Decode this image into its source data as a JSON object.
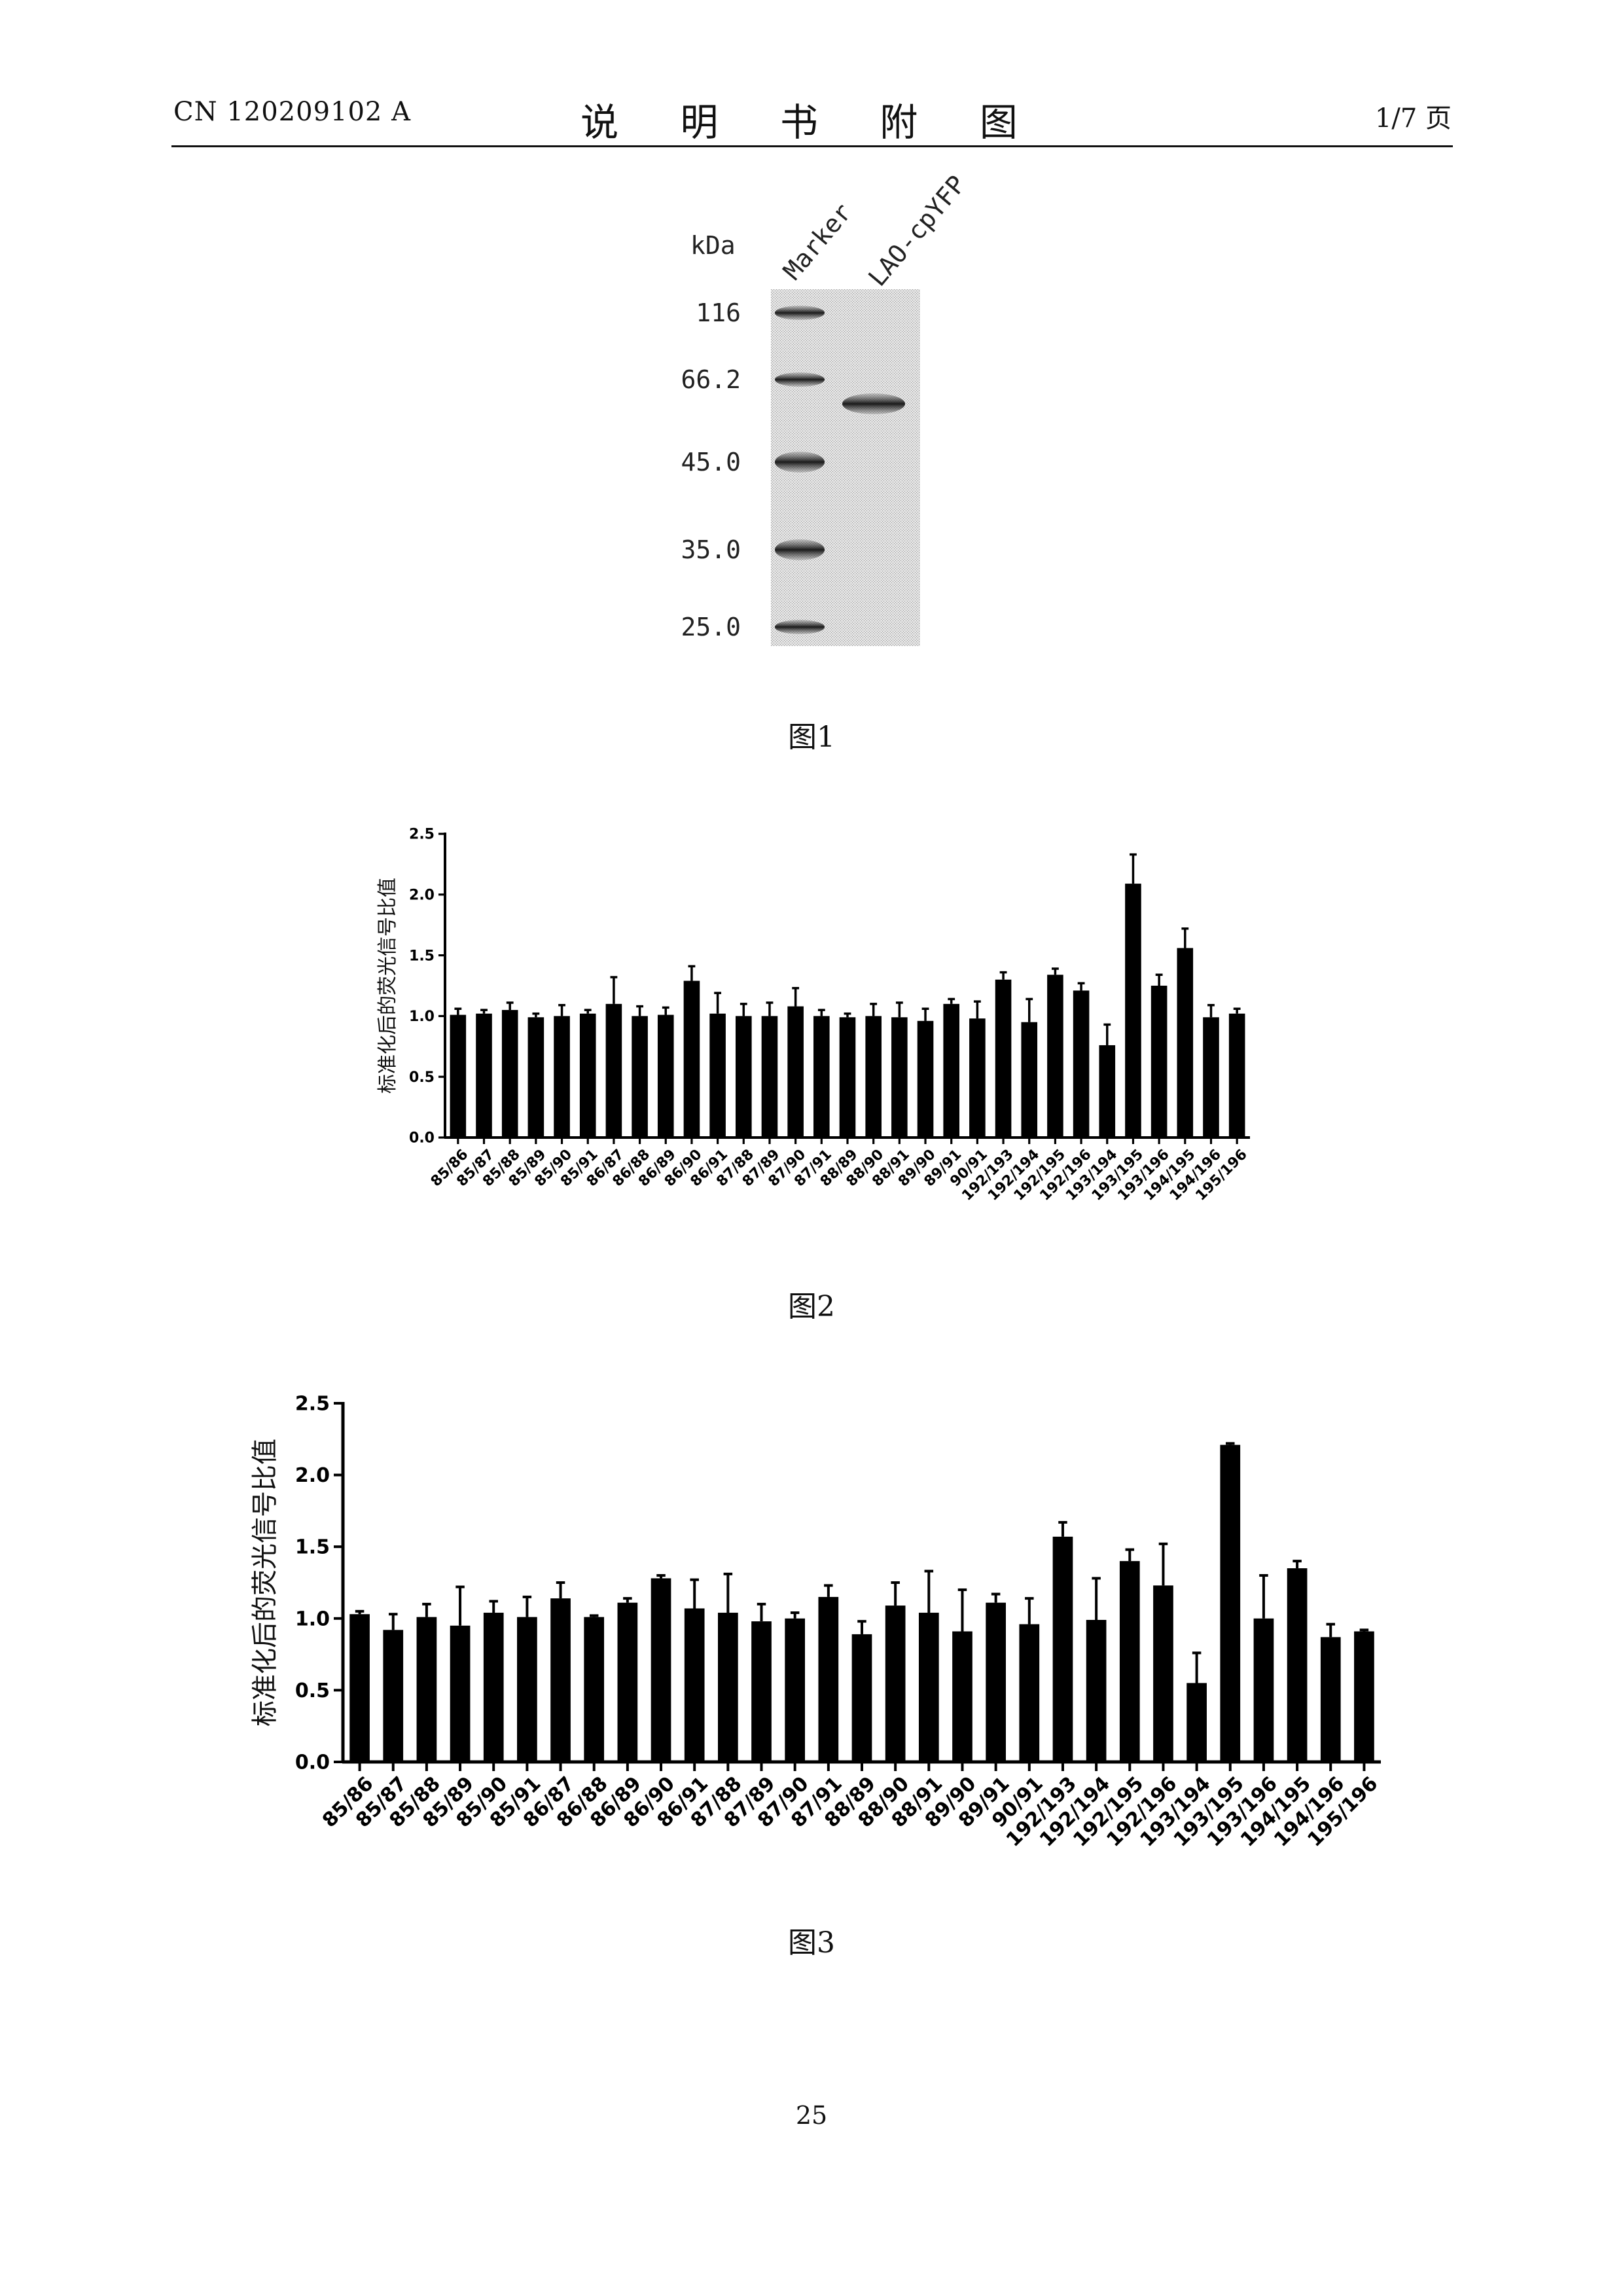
{
  "header": {
    "patent_number": "CN 120209102 A",
    "title": "说 明 书 附 图",
    "page_of": "1/7 页"
  },
  "figures": {
    "fig1_caption": "图1",
    "fig2_caption": "图2",
    "fig3_caption": "图3"
  },
  "gel": {
    "unit_label": "kDa",
    "lane_labels": [
      "Marker",
      "LAO-cpYFP"
    ],
    "marker_values": [
      "116",
      "66.2",
      "45.0",
      "35.0",
      "25.0"
    ]
  },
  "footer": {
    "page_number": "25"
  },
  "chart_data": [
    {
      "type": "bar",
      "title": "",
      "xlabel": "",
      "ylabel": "标准化后的荧光信号比值",
      "ylim": [
        0,
        2.5
      ],
      "yticks": [
        "0.0",
        "0.5",
        "1.0",
        "1.5",
        "2.0",
        "2.5"
      ],
      "grid": false,
      "categories": [
        "85/86",
        "85/87",
        "85/88",
        "85/89",
        "85/90",
        "85/91",
        "86/87",
        "86/88",
        "86/89",
        "86/90",
        "86/91",
        "87/88",
        "87/89",
        "87/90",
        "87/91",
        "88/89",
        "88/90",
        "88/91",
        "89/90",
        "89/91",
        "90/91",
        "192/193",
        "192/194",
        "192/195",
        "192/196",
        "193/194",
        "193/195",
        "193/196",
        "194/195",
        "194/196",
        "195/196"
      ],
      "values": [
        1.01,
        1.02,
        1.05,
        0.99,
        1.0,
        1.02,
        1.1,
        1.0,
        1.01,
        1.29,
        1.02,
        1.0,
        1.0,
        1.08,
        1.0,
        0.99,
        1.0,
        0.99,
        0.96,
        1.1,
        0.98,
        1.3,
        0.95,
        1.34,
        1.21,
        0.76,
        2.09,
        1.25,
        1.56,
        0.99,
        1.02
      ],
      "errors": [
        0.05,
        0.03,
        0.06,
        0.03,
        0.09,
        0.03,
        0.22,
        0.08,
        0.06,
        0.12,
        0.17,
        0.1,
        0.11,
        0.15,
        0.05,
        0.03,
        0.1,
        0.12,
        0.1,
        0.04,
        0.14,
        0.06,
        0.19,
        0.05,
        0.06,
        0.17,
        0.24,
        0.09,
        0.16,
        0.1,
        0.04
      ]
    },
    {
      "type": "bar",
      "title": "",
      "xlabel": "",
      "ylabel": "标准化后的荧光信号比值",
      "ylim": [
        0,
        2.5
      ],
      "yticks": [
        "0.0",
        "0.5",
        "1.0",
        "1.5",
        "2.0",
        "2.5"
      ],
      "grid": false,
      "categories": [
        "85/86",
        "85/87",
        "85/88",
        "85/89",
        "85/90",
        "85/91",
        "86/87",
        "86/88",
        "86/89",
        "86/90",
        "86/91",
        "87/88",
        "87/89",
        "87/90",
        "87/91",
        "88/89",
        "88/90",
        "88/91",
        "89/90",
        "89/91",
        "90/91",
        "192/193",
        "192/194",
        "192/195",
        "192/196",
        "193/194",
        "193/195",
        "193/196",
        "194/195",
        "194/196",
        "195/196"
      ],
      "values": [
        1.03,
        0.92,
        1.01,
        0.95,
        1.04,
        1.01,
        1.14,
        1.01,
        1.11,
        1.28,
        1.07,
        1.04,
        0.98,
        1.0,
        1.15,
        0.89,
        1.09,
        1.04,
        0.91,
        1.11,
        0.96,
        1.57,
        0.99,
        1.4,
        1.23,
        0.55,
        2.21,
        1.0,
        1.35,
        0.87,
        0.91
      ],
      "errors": [
        0.02,
        0.11,
        0.09,
        0.27,
        0.08,
        0.14,
        0.11,
        0.01,
        0.03,
        0.02,
        0.2,
        0.27,
        0.12,
        0.04,
        0.08,
        0.09,
        0.16,
        0.29,
        0.29,
        0.06,
        0.18,
        0.1,
        0.29,
        0.08,
        0.29,
        0.21,
        0.01,
        0.3,
        0.05,
        0.09,
        0.01
      ]
    }
  ]
}
